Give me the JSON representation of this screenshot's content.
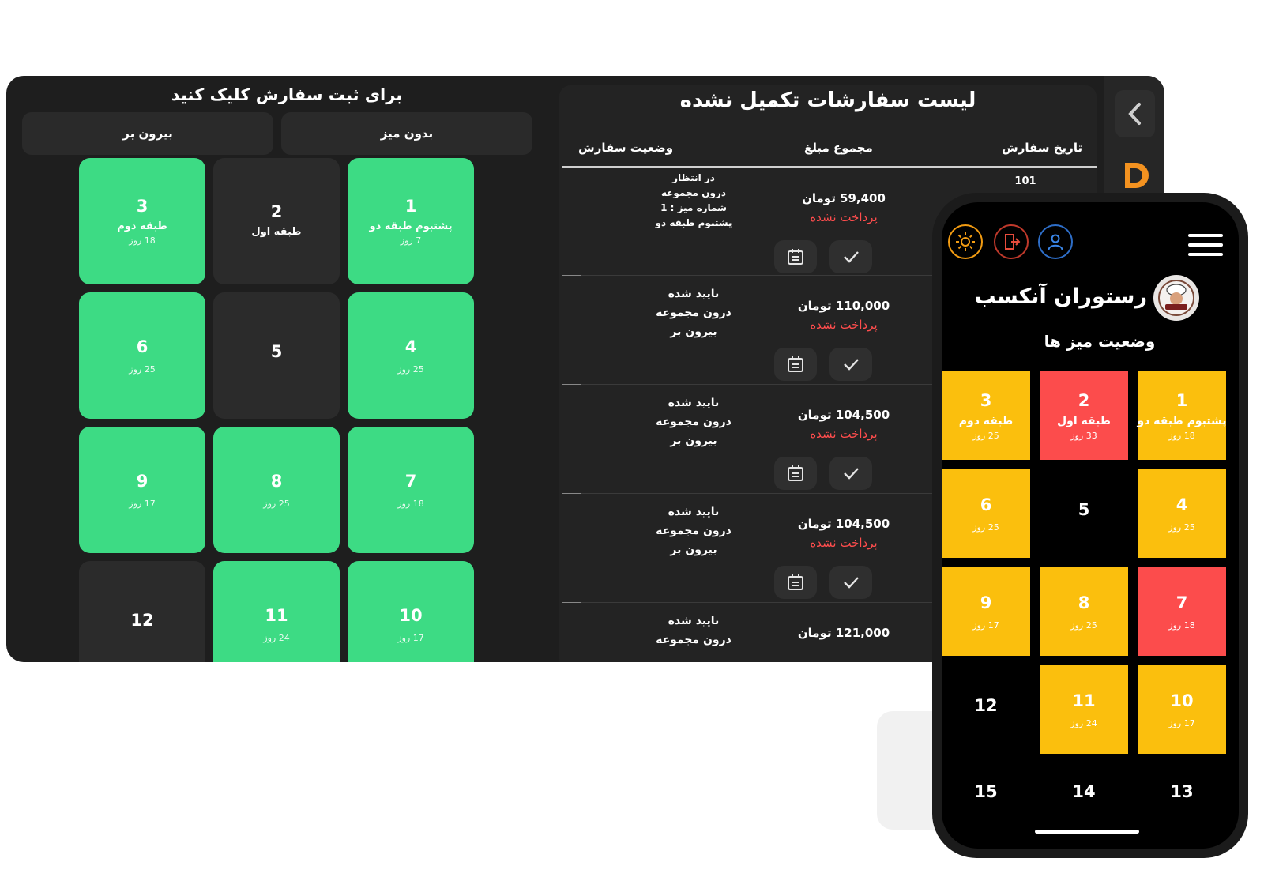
{
  "tablet": {
    "left_panel": {
      "title": "برای ثبت سفارش کلیک کنید",
      "tabs": [
        "بیرون بر",
        "بدون میز"
      ],
      "tables": [
        {
          "number": "3",
          "label": "طبقه دوم",
          "days": "18 روز",
          "active": true
        },
        {
          "number": "2",
          "label": "طبقه اول",
          "days": "",
          "active": false
        },
        {
          "number": "1",
          "label": "پشتبوم طبقه دو",
          "days": "7 روز",
          "active": true
        },
        {
          "number": "6",
          "label": "",
          "days": "25 روز",
          "active": true
        },
        {
          "number": "5",
          "label": "",
          "days": "",
          "active": false
        },
        {
          "number": "4",
          "label": "",
          "days": "25 روز",
          "active": true
        },
        {
          "number": "9",
          "label": "",
          "days": "17 روز",
          "active": true
        },
        {
          "number": "8",
          "label": "",
          "days": "25 روز",
          "active": true
        },
        {
          "number": "7",
          "label": "",
          "days": "18 روز",
          "active": true
        },
        {
          "number": "12",
          "label": "",
          "days": "",
          "active": false
        },
        {
          "number": "11",
          "label": "",
          "days": "24 روز",
          "active": true
        },
        {
          "number": "10",
          "label": "",
          "days": "17 روز",
          "active": true
        }
      ]
    },
    "orders_panel": {
      "title": "لیست سفارشات تکمیل نشده",
      "columns": {
        "date": "تاریخ سفارش",
        "total": "مجموع مبلغ",
        "status": "وضعیت سفارش"
      },
      "orders": [
        {
          "date": "101",
          "status_lines": [
            "در انتظار",
            "درون مجموعه",
            "شماره میز : 1",
            "پشتبوم طبقه دو"
          ],
          "amount": "59,400 تومان",
          "payment": "پرداخت نشده"
        },
        {
          "date": "",
          "status_lines": [
            "تایید شده",
            "درون مجموعه",
            "بیرون بر"
          ],
          "amount": "110,000 تومان",
          "payment": "پرداخت نشده"
        },
        {
          "date": "",
          "status_lines": [
            "تایید شده",
            "درون مجموعه",
            "بیرون بر"
          ],
          "amount": "104,500 تومان",
          "payment": "پرداخت نشده"
        },
        {
          "date": "",
          "status_lines": [
            "تایید شده",
            "درون مجموعه",
            "بیرون بر"
          ],
          "amount": "104,500 تومان",
          "payment": "پرداخت نشده"
        },
        {
          "date": "",
          "status_lines": [
            "تایید شده",
            "درون مجموعه"
          ],
          "amount": "121,000 تومان",
          "payment": ""
        }
      ]
    }
  },
  "phone": {
    "restaurant_name": "رستوران آنکسب",
    "section_title": "وضعیت میز ها",
    "icons": [
      "sun-icon",
      "exit-icon",
      "user-icon",
      "menu-icon"
    ],
    "tables": [
      {
        "number": "3",
        "label": "طبقه دوم",
        "days": "25 روز",
        "state": "occupied"
      },
      {
        "number": "2",
        "label": "طبقه اول",
        "days": "33 روز",
        "state": "alert"
      },
      {
        "number": "1",
        "label": "پشتبوم طبقه دو",
        "days": "18 روز",
        "state": "occupied"
      },
      {
        "number": "6",
        "label": "",
        "days": "25 روز",
        "state": "occupied"
      },
      {
        "number": "5",
        "label": "",
        "days": "",
        "state": "free"
      },
      {
        "number": "4",
        "label": "",
        "days": "25 روز",
        "state": "occupied"
      },
      {
        "number": "9",
        "label": "",
        "days": "17 روز",
        "state": "occupied"
      },
      {
        "number": "8",
        "label": "",
        "days": "25 روز",
        "state": "occupied"
      },
      {
        "number": "7",
        "label": "",
        "days": "18 روز",
        "state": "alert"
      },
      {
        "number": "12",
        "label": "",
        "days": "",
        "state": "free"
      },
      {
        "number": "11",
        "label": "",
        "days": "24 روز",
        "state": "occupied"
      },
      {
        "number": "10",
        "label": "",
        "days": "17 روز",
        "state": "occupied"
      },
      {
        "number": "15",
        "label": "",
        "days": "",
        "state": "free"
      },
      {
        "number": "14",
        "label": "",
        "days": "",
        "state": "free"
      },
      {
        "number": "13",
        "label": "",
        "days": "",
        "state": "free"
      }
    ]
  },
  "colors": {
    "active_tile": "#3ddb84",
    "occupied": "#fbbf0d",
    "alert": "#fc4c4c",
    "unpaid": "#ff4d4d"
  }
}
